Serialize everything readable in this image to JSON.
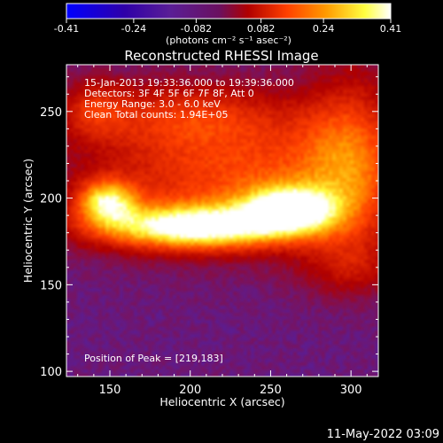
{
  "colorbar": {
    "tick_labels": [
      "-0.41",
      "-0.24",
      "-0.082",
      "0.082",
      "0.24",
      "0.41"
    ],
    "unit_label": "(photons cm⁻² s⁻¹ asec⁻²)",
    "range": [
      -0.41,
      0.41
    ],
    "colors": [
      "#0000ff",
      "#2f00a8",
      "#5a1e96",
      "#b00000",
      "#ff4000",
      "#ff9a00",
      "#ffff40",
      "#ffffff"
    ]
  },
  "footer": {
    "date_stamp": "11-May-2022 03:09"
  },
  "chart_data": {
    "type": "heatmap",
    "title": "Reconstructed RHESSI Image",
    "xlabel": "Heliocentric X (arcsec)",
    "ylabel": "Heliocentric Y (arcsec)",
    "xlim": [
      123,
      317
    ],
    "ylim": [
      97,
      277
    ],
    "xticks": [
      150,
      200,
      250,
      300
    ],
    "yticks": [
      100,
      150,
      200,
      250
    ],
    "annotations": [
      "15-Jan-2013 19:33:36.000 to 19:39:36.000",
      "Detectors: 3F 4F 5F 6F 7F 8F, Att 0",
      "Energy Range: 3.0 - 6.0 keV",
      "Clean    Total counts: 1.94E+05"
    ],
    "peak_label": "Position of Peak = [219,183]",
    "peak": [
      219,
      183
    ],
    "background_level": -0.12,
    "sources": [
      {
        "x": 203,
        "y": 183,
        "sx": 44,
        "sy": 9,
        "amp": 0.5
      },
      {
        "x": 262,
        "y": 194,
        "sx": 20,
        "sy": 9,
        "amp": 0.44
      },
      {
        "x": 148,
        "y": 198,
        "sx": 13,
        "sy": 9,
        "amp": 0.38
      },
      {
        "x": 232,
        "y": 212,
        "sx": 68,
        "sy": 26,
        "amp": 0.26
      },
      {
        "x": 195,
        "y": 248,
        "sx": 46,
        "sy": 14,
        "amp": 0.17
      },
      {
        "x": 300,
        "y": 225,
        "sx": 22,
        "sy": 36,
        "amp": 0.22
      },
      {
        "x": 300,
        "y": 160,
        "sx": 22,
        "sy": 12,
        "amp": 0.12
      },
      {
        "x": 140,
        "y": 252,
        "sx": 14,
        "sy": 12,
        "amp": 0.14
      }
    ]
  }
}
